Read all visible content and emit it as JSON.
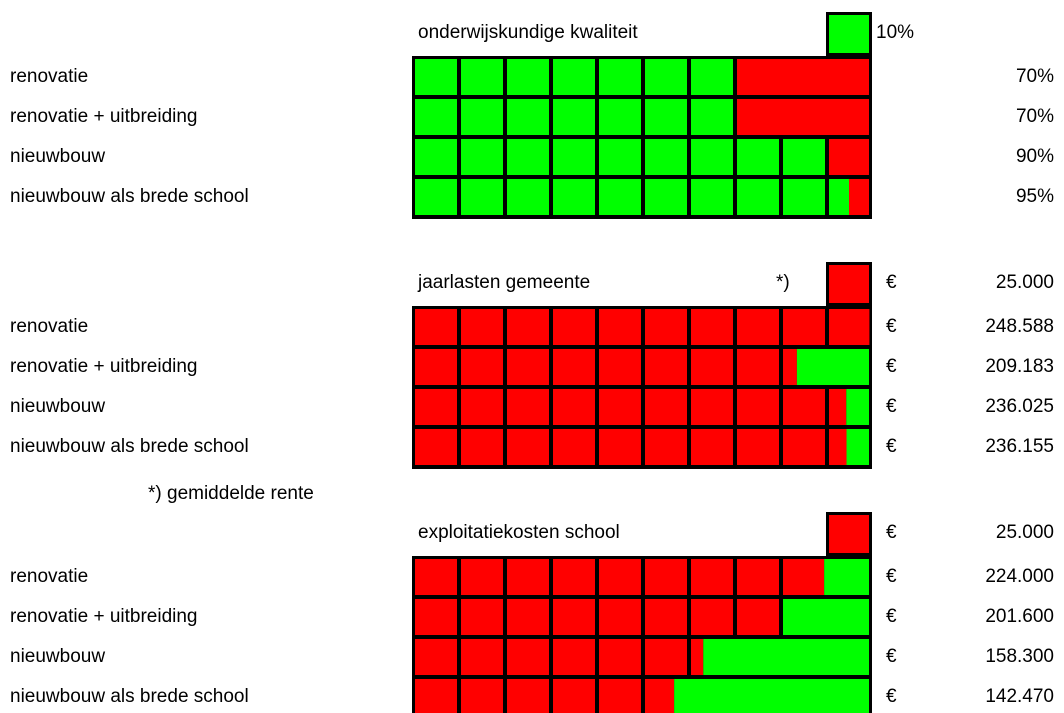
{
  "chart_data": [
    {
      "type": "cellbar",
      "title": "onderwijskundige kwaliteit",
      "unit": {
        "value": 10,
        "label": "10%"
      },
      "categories": [
        "renovatie",
        "renovatie + uitbreiding",
        "nieuwbouw",
        "nieuwbouw als brede school"
      ],
      "values": [
        70,
        70,
        90,
        95
      ],
      "value_labels": [
        "70%",
        "70%",
        "90%",
        "95%"
      ],
      "color": "#00ff00",
      "rest_color": "#ff0000",
      "cells": 10
    },
    {
      "type": "cellbar",
      "title": "jaarlasten gemeente",
      "note_marker": "*)",
      "currency": "€",
      "unit": {
        "value": 25000,
        "label": "25.000"
      },
      "categories": [
        "renovatie",
        "renovatie + uitbreiding",
        "nieuwbouw",
        "nieuwbouw als brede school"
      ],
      "values": [
        248588,
        209183,
        236025,
        236155
      ],
      "value_labels": [
        "248.588",
        "209.183",
        "236.025",
        "236.155"
      ],
      "color": "#ff0000",
      "rest_color": "#00ff00",
      "cells": 10,
      "footnote": "*) gemiddelde rente"
    },
    {
      "type": "cellbar",
      "title": "exploitatiekosten school",
      "currency": "€",
      "unit": {
        "value": 25000,
        "label": "25.000"
      },
      "categories": [
        "renovatie",
        "renovatie + uitbreiding",
        "nieuwbouw",
        "nieuwbouw als brede school"
      ],
      "values": [
        224000,
        201600,
        158300,
        142470
      ],
      "value_labels": [
        "224.000",
        "201.600",
        "158.300",
        "142.470"
      ],
      "color": "#ff0000",
      "rest_color": "#00ff00",
      "cells": 10
    }
  ]
}
